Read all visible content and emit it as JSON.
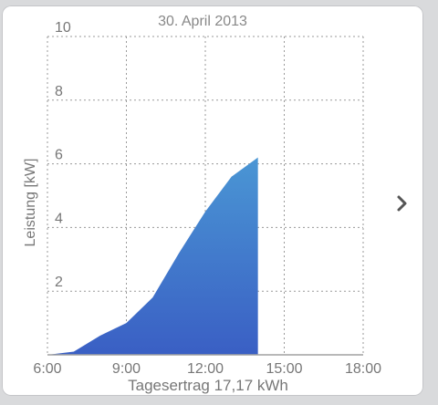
{
  "chart_data": {
    "type": "area",
    "title": "30. April 2013",
    "ylabel": "Leistung [kW]",
    "xlabel": "Tagesertrag 17,17 kWh",
    "x_ticks": [
      "6:00",
      "9:00",
      "12:00",
      "15:00",
      "18:00"
    ],
    "y_ticks": [
      "2",
      "4",
      "6",
      "8",
      "10"
    ],
    "xlim": [
      "6:00",
      "18:00"
    ],
    "ylim": [
      0,
      10
    ],
    "grid": true,
    "series": [
      {
        "x": [
          "6:00",
          "7:00",
          "8:00",
          "9:00",
          "10:00",
          "11:00",
          "12:00",
          "13:00",
          "14:00"
        ],
        "values": [
          0.0,
          0.1,
          0.6,
          1.0,
          1.8,
          3.2,
          4.5,
          5.6,
          6.2
        ]
      }
    ],
    "colors": {
      "fill_top": "#4a96d4",
      "fill_bottom": "#3a5fc4",
      "grid": "#9a9a9a"
    }
  },
  "navigation": {
    "next_icon": "chevron-right-icon"
  }
}
